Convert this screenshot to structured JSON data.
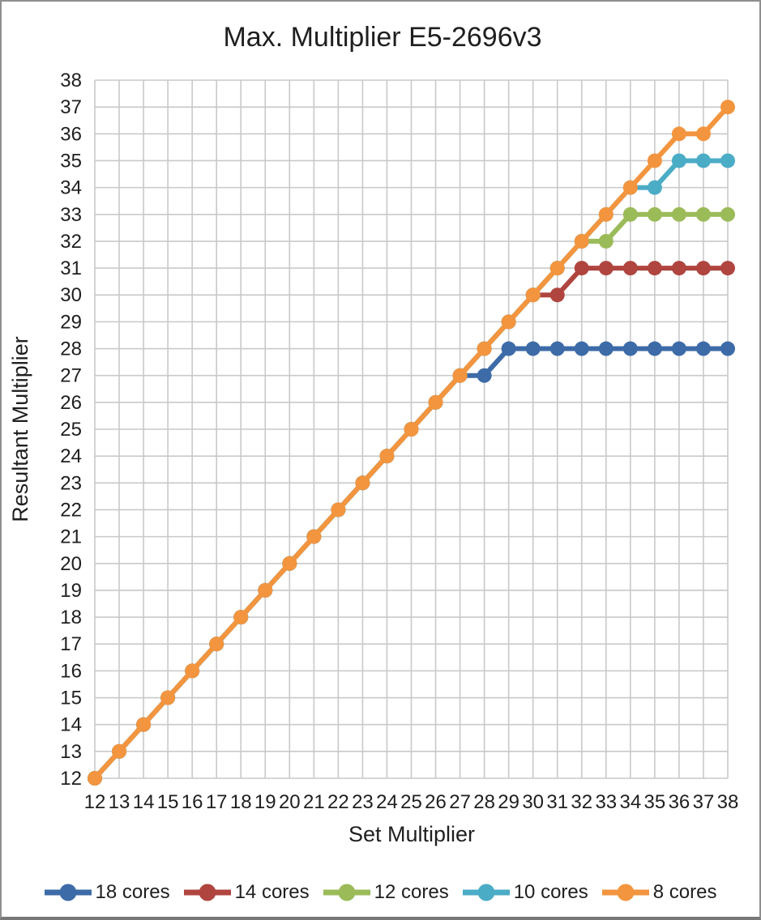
{
  "chart_data": {
    "type": "line",
    "title": "Max. Multiplier E5-2696v3",
    "xlabel": "Set Multiplier",
    "ylabel": "Resultant Multiplier",
    "xlim": [
      12,
      38
    ],
    "ylim": [
      12,
      38
    ],
    "x_tick_step": 1,
    "y_tick_step": 1,
    "grid": true,
    "legend_position": "bottom",
    "x": [
      12,
      13,
      14,
      15,
      16,
      17,
      18,
      19,
      20,
      21,
      22,
      23,
      24,
      25,
      26,
      27,
      28,
      29,
      30,
      31,
      32,
      33,
      34,
      35,
      36,
      37,
      38
    ],
    "series": [
      {
        "name": "18 cores",
        "color": "#3d6ba8",
        "values": [
          12,
          13,
          14,
          15,
          16,
          17,
          18,
          19,
          20,
          21,
          22,
          23,
          24,
          25,
          26,
          27,
          27,
          28,
          28,
          28,
          28,
          28,
          28,
          28,
          28,
          28,
          28
        ]
      },
      {
        "name": "14 cores",
        "color": "#b0453f",
        "values": [
          12,
          13,
          14,
          15,
          16,
          17,
          18,
          19,
          20,
          21,
          22,
          23,
          24,
          25,
          26,
          27,
          28,
          29,
          30,
          30,
          31,
          31,
          31,
          31,
          31,
          31,
          31
        ]
      },
      {
        "name": "12 cores",
        "color": "#9bbb59",
        "values": [
          12,
          13,
          14,
          15,
          16,
          17,
          18,
          19,
          20,
          21,
          22,
          23,
          24,
          25,
          26,
          27,
          28,
          29,
          30,
          31,
          32,
          32,
          33,
          33,
          33,
          33,
          33
        ]
      },
      {
        "name": "10 cores",
        "color": "#4bacc6",
        "values": [
          12,
          13,
          14,
          15,
          16,
          17,
          18,
          19,
          20,
          21,
          22,
          23,
          24,
          25,
          26,
          27,
          28,
          29,
          30,
          31,
          32,
          33,
          34,
          34,
          35,
          35,
          35
        ]
      },
      {
        "name": "8 cores",
        "color": "#f3953f",
        "values": [
          12,
          13,
          14,
          15,
          16,
          17,
          18,
          19,
          20,
          21,
          22,
          23,
          24,
          25,
          26,
          27,
          28,
          29,
          30,
          31,
          32,
          33,
          34,
          35,
          36,
          36,
          37
        ]
      }
    ]
  },
  "colors": {
    "grid": "#c9c9c9",
    "text": "#1f1f1f",
    "frame_border": "#8f8f8f"
  }
}
